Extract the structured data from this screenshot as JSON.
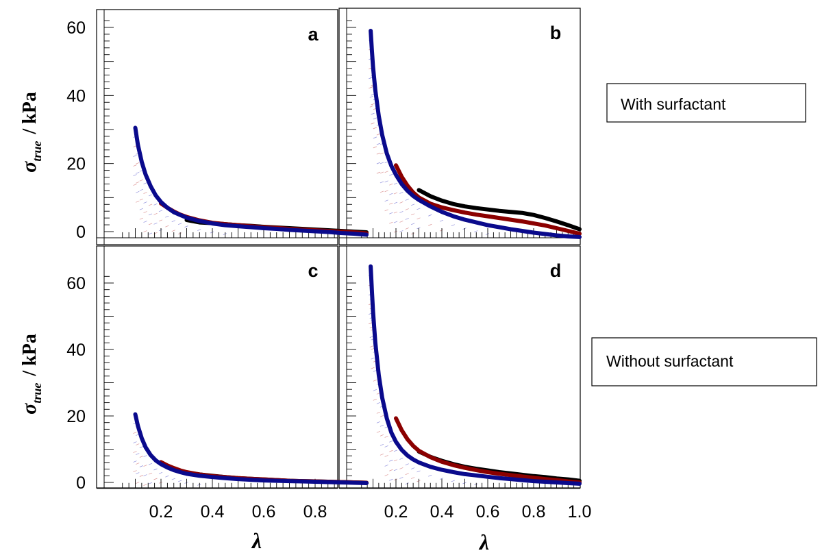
{
  "figure": {
    "ylabel": {
      "symbol": "σ",
      "subscript": "true",
      "unit": "/  kPa"
    },
    "xlabel": "λ",
    "annotations": {
      "with": "With surfactant",
      "without": "Without surfactant"
    },
    "colors": {
      "black": "#000000",
      "red": "#8b0000",
      "blue": "#0a0a8c",
      "frame": "#000000"
    }
  },
  "chart_data": [
    {
      "type": "line",
      "panel": "a",
      "xlim": [
        0.0,
        1.0
      ],
      "ylim": [
        -3,
        66
      ],
      "yticks": [
        0,
        20,
        40,
        60
      ],
      "xticks": [],
      "series": [
        {
          "color": "black",
          "x": [
            0.3,
            0.35,
            0.4,
            0.45,
            0.5,
            0.55,
            0.6,
            0.65,
            0.7,
            0.75,
            0.8,
            0.85,
            0.9,
            0.95,
            1.0
          ],
          "y": [
            3.4,
            2.7,
            2.5,
            2.2,
            1.9,
            1.7,
            1.4,
            1.2,
            1.0,
            0.8,
            0.6,
            0.4,
            0.2,
            0.0,
            -0.2
          ]
        },
        {
          "color": "red",
          "x": [
            0.2,
            0.225,
            0.25,
            0.275,
            0.3,
            0.35,
            0.4,
            0.45,
            0.5,
            0.55,
            0.6,
            0.65,
            0.7,
            0.75,
            0.8,
            0.85,
            0.9,
            0.95,
            1.0
          ],
          "y": [
            8.3,
            7.0,
            5.9,
            5.0,
            4.3,
            3.3,
            2.6,
            2.2,
            1.9,
            1.6,
            1.3,
            1.1,
            0.8,
            0.6,
            0.4,
            0.2,
            0.0,
            -0.2,
            -0.5
          ]
        },
        {
          "color": "blue",
          "x": [
            0.1,
            0.11,
            0.125,
            0.14,
            0.16,
            0.18,
            0.2,
            0.225,
            0.25,
            0.275,
            0.3,
            0.35,
            0.4,
            0.45,
            0.5,
            0.55,
            0.6,
            0.65,
            0.7,
            0.75,
            0.8,
            0.85,
            0.9,
            0.95,
            1.0
          ],
          "y": [
            30.5,
            25.5,
            20.5,
            16.8,
            13.3,
            10.6,
            8.7,
            7.0,
            5.7,
            4.9,
            4.1,
            3.1,
            2.4,
            1.9,
            1.6,
            1.3,
            1.0,
            0.8,
            0.5,
            0.3,
            0.1,
            -0.1,
            -0.4,
            -0.6,
            -0.9
          ]
        }
      ]
    },
    {
      "type": "line",
      "panel": "b",
      "xlim": [
        0.0,
        1.0
      ],
      "ylim": [
        -3,
        66
      ],
      "yticks": [],
      "xticks": [],
      "series": [
        {
          "color": "black",
          "x": [
            0.3,
            0.35,
            0.4,
            0.45,
            0.5,
            0.55,
            0.6,
            0.65,
            0.7,
            0.75,
            0.8,
            0.85,
            0.9,
            0.95,
            1.0
          ],
          "y": [
            12.2,
            10.4,
            9.1,
            8.1,
            7.4,
            6.9,
            6.5,
            6.1,
            5.8,
            5.5,
            4.9,
            4.0,
            3.0,
            1.9,
            0.7
          ]
        },
        {
          "color": "red",
          "x": [
            0.2,
            0.225,
            0.25,
            0.275,
            0.3,
            0.35,
            0.4,
            0.45,
            0.5,
            0.55,
            0.6,
            0.65,
            0.7,
            0.75,
            0.8,
            0.85,
            0.9,
            0.95,
            1.0
          ],
          "y": [
            19.5,
            16.1,
            13.5,
            11.5,
            10.0,
            8.2,
            7.1,
            6.3,
            5.6,
            5.0,
            4.5,
            4.0,
            3.5,
            3.0,
            2.4,
            1.8,
            1.0,
            0.2,
            -0.6
          ]
        },
        {
          "color": "blue",
          "x": [
            0.09,
            0.095,
            0.1,
            0.11,
            0.125,
            0.14,
            0.16,
            0.18,
            0.2,
            0.225,
            0.25,
            0.275,
            0.3,
            0.35,
            0.4,
            0.45,
            0.5,
            0.55,
            0.6,
            0.65,
            0.7,
            0.75,
            0.8,
            0.85,
            0.9,
            0.95,
            1.0
          ],
          "y": [
            59,
            53.5,
            48.5,
            41.5,
            34.0,
            28.4,
            23.0,
            19.3,
            16.7,
            14.0,
            12.0,
            10.5,
            9.3,
            7.4,
            5.8,
            4.5,
            3.5,
            2.7,
            1.9,
            1.3,
            0.7,
            0.2,
            -0.3,
            -0.7,
            -1.1,
            -1.4,
            -1.6
          ]
        }
      ]
    },
    {
      "type": "line",
      "panel": "c",
      "xlim": [
        0.0,
        1.0
      ],
      "ylim": [
        -3,
        72
      ],
      "yticks": [
        0,
        20,
        40,
        60
      ],
      "xticks": [
        0.2,
        0.4,
        0.6,
        0.8
      ],
      "series": [
        {
          "color": "black",
          "x": [
            0.3,
            0.35,
            0.4,
            0.45,
            0.5,
            0.55,
            0.6,
            0.65,
            0.7,
            0.75,
            0.8,
            0.85,
            0.9,
            0.95,
            1.0
          ],
          "y": [
            3.0,
            2.4,
            2.0,
            1.6,
            1.3,
            1.1,
            0.9,
            0.7,
            0.5,
            0.4,
            0.3,
            0.2,
            0.1,
            0.0,
            -0.1
          ]
        },
        {
          "color": "red",
          "x": [
            0.2,
            0.225,
            0.25,
            0.275,
            0.3,
            0.35,
            0.4,
            0.45,
            0.5,
            0.55,
            0.6,
            0.65,
            0.7,
            0.75,
            0.8,
            0.85,
            0.9,
            0.95,
            1.0
          ],
          "y": [
            6.1,
            5.1,
            4.3,
            3.6,
            3.1,
            2.4,
            1.9,
            1.6,
            1.3,
            1.1,
            0.9,
            0.7,
            0.5,
            0.4,
            0.3,
            0.2,
            0.1,
            0.0,
            -0.1
          ]
        },
        {
          "color": "blue",
          "x": [
            0.1,
            0.11,
            0.125,
            0.14,
            0.16,
            0.18,
            0.2,
            0.225,
            0.25,
            0.275,
            0.3,
            0.35,
            0.4,
            0.45,
            0.5,
            0.55,
            0.6,
            0.65,
            0.7,
            0.75,
            0.8,
            0.85,
            0.9,
            0.95,
            1.0
          ],
          "y": [
            20.5,
            17.0,
            13.3,
            10.6,
            8.2,
            6.6,
            5.5,
            4.5,
            3.7,
            3.1,
            2.6,
            2.0,
            1.6,
            1.3,
            1.0,
            0.8,
            0.6,
            0.5,
            0.4,
            0.3,
            0.2,
            0.1,
            0.0,
            -0.1,
            -0.2
          ]
        }
      ]
    },
    {
      "type": "line",
      "panel": "d",
      "xlim": [
        0.0,
        1.0
      ],
      "ylim": [
        -3,
        72
      ],
      "yticks": [],
      "xticks": [
        0.2,
        0.4,
        0.6,
        0.8,
        1.0
      ],
      "series": [
        {
          "color": "black",
          "x": [
            0.3,
            0.35,
            0.4,
            0.45,
            0.5,
            0.55,
            0.6,
            0.65,
            0.7,
            0.75,
            0.8,
            0.85,
            0.9,
            0.95,
            1.0
          ],
          "y": [
            9.3,
            7.7,
            6.5,
            5.5,
            4.7,
            4.1,
            3.6,
            3.1,
            2.7,
            2.3,
            1.9,
            1.6,
            1.2,
            0.9,
            0.5
          ]
        },
        {
          "color": "red",
          "x": [
            0.2,
            0.225,
            0.25,
            0.275,
            0.3,
            0.35,
            0.4,
            0.45,
            0.5,
            0.55,
            0.6,
            0.65,
            0.7,
            0.75,
            0.8,
            0.85,
            0.9,
            0.95,
            1.0
          ],
          "y": [
            19.3,
            15.7,
            13.0,
            11.0,
            9.5,
            7.6,
            6.2,
            5.2,
            4.4,
            3.7,
            3.1,
            2.6,
            2.2,
            1.8,
            1.4,
            1.0,
            0.7,
            0.3,
            0.0
          ]
        },
        {
          "color": "blue",
          "x": [
            0.09,
            0.095,
            0.1,
            0.11,
            0.125,
            0.14,
            0.16,
            0.18,
            0.2,
            0.225,
            0.25,
            0.275,
            0.3,
            0.35,
            0.4,
            0.45,
            0.5,
            0.55,
            0.6,
            0.65,
            0.7,
            0.75,
            0.8,
            0.85,
            0.9,
            0.95,
            1.0
          ],
          "y": [
            65,
            58,
            51.5,
            42.0,
            32.3,
            25.5,
            19.3,
            15.0,
            12.2,
            9.8,
            8.1,
            6.9,
            6.0,
            4.7,
            3.8,
            3.1,
            2.5,
            2.1,
            1.7,
            1.3,
            1.0,
            0.7,
            0.4,
            0.2,
            0.0,
            -0.2,
            -0.4
          ]
        }
      ]
    }
  ]
}
